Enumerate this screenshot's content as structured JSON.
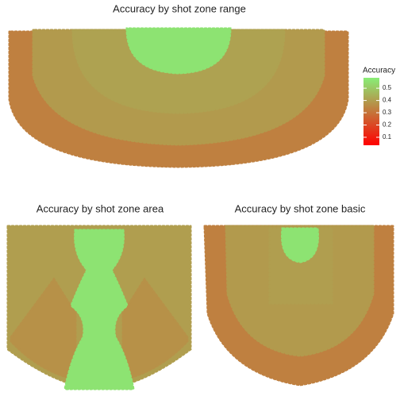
{
  "chart_data": [
    {
      "type": "zone-map",
      "title": "Accuracy by shot zone range",
      "values": [
        0.56,
        0.41,
        0.39,
        0.33
      ],
      "colorbar": {
        "title": "Accuracy",
        "lim": [
          0.035,
          0.585
        ],
        "ticks": [
          0.1,
          0.2,
          0.3,
          0.4,
          0.5
        ],
        "colors": [
          "#ff0000",
          "#88ee77"
        ]
      }
    },
    {
      "type": "zone-map",
      "title": "Accuracy by shot zone area",
      "values": [
        0.56,
        0.4,
        0.37,
        0.37,
        0.4
      ]
    },
    {
      "type": "zone-map",
      "title": "Accuracy by shot zone basic",
      "values": [
        0.56,
        0.4,
        0.39,
        0.33
      ]
    }
  ]
}
